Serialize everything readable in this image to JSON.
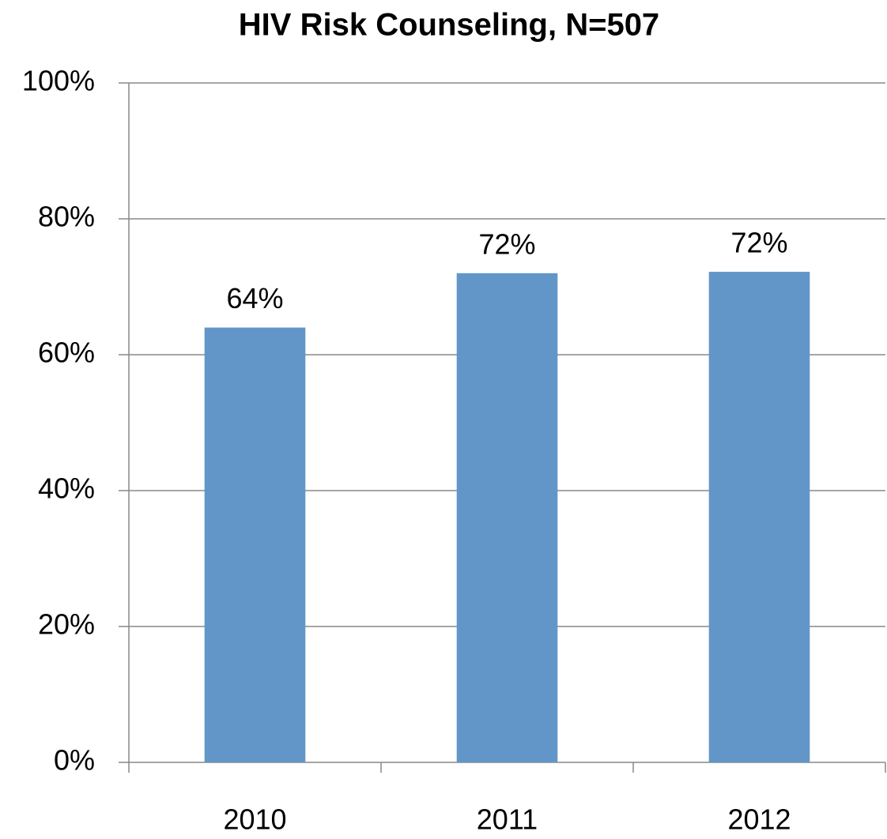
{
  "chart_data": {
    "type": "bar",
    "title": "HIV Risk Counseling, N=507",
    "categories": [
      "2010",
      "2011",
      "2012"
    ],
    "values": [
      64,
      72,
      72.2
    ],
    "value_labels": [
      "64%",
      "72%",
      "72%"
    ],
    "color": "#6296c8",
    "ylim": [
      0,
      100
    ],
    "yticks": [
      {
        "value": 0,
        "label": "0%"
      },
      {
        "value": 20,
        "label": "20%"
      },
      {
        "value": 40,
        "label": "40%"
      },
      {
        "value": 60,
        "label": "60%"
      },
      {
        "value": 80,
        "label": "80%"
      },
      {
        "value": 100,
        "label": "100%"
      }
    ],
    "grid": true
  }
}
